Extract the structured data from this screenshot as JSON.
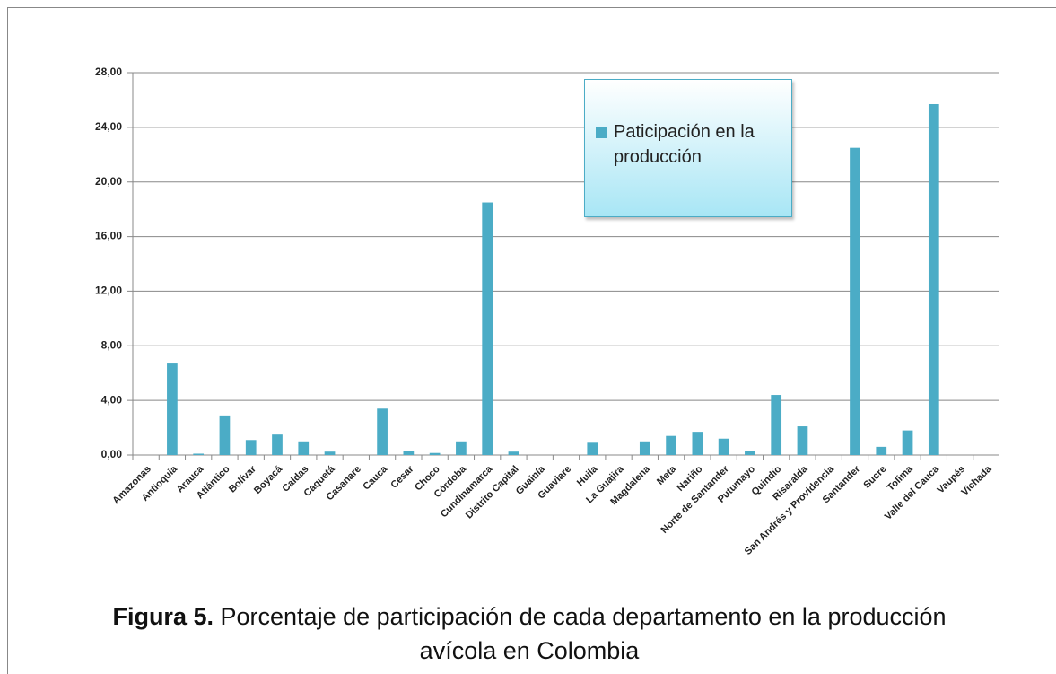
{
  "chart_data": {
    "type": "bar",
    "categories": [
      "Amazonas",
      "Antioquia",
      "Arauca",
      "Atlántico",
      "Bolívar",
      "Boyacá",
      "Caldas",
      "Caquetá",
      "Casanare",
      "Cauca",
      "Cesar",
      "Choco",
      "Córdoba",
      "Cundinamarca",
      "Distrito Capital",
      "Guainía",
      "Guaviare",
      "Huila",
      "La Guajira",
      "Magdalena",
      "Meta",
      "Nariño",
      "Norte de Santander",
      "Putumayo",
      "Quindío",
      "Risaralda",
      "San Andrés y Providencia",
      "Santander",
      "Sucre",
      "Tolima",
      "Valle del Cauca",
      "Vaupés",
      "Vichada"
    ],
    "series": [
      {
        "name": "Paticipación  en la producción",
        "color": "#4bacc6",
        "values": [
          0,
          6.7,
          0.1,
          2.9,
          1.1,
          1.5,
          1.0,
          0.25,
          0,
          3.4,
          0.3,
          0.15,
          1.0,
          18.5,
          0.25,
          0,
          0,
          0.9,
          0,
          1.0,
          1.4,
          1.7,
          1.2,
          0.3,
          4.4,
          2.1,
          0,
          22.5,
          0.6,
          1.8,
          25.7,
          0,
          0
        ]
      }
    ],
    "ylim": [
      0,
      28
    ],
    "yticks": [
      {
        "value": 0,
        "label": "0,00"
      },
      {
        "value": 4,
        "label": "4,00"
      },
      {
        "value": 8,
        "label": "8,00"
      },
      {
        "value": 12,
        "label": "12,00"
      },
      {
        "value": 16,
        "label": "16,00"
      },
      {
        "value": 20,
        "label": "20,00"
      },
      {
        "value": 24,
        "label": "24,00"
      },
      {
        "value": 28,
        "label": "28,00"
      }
    ],
    "grid": true,
    "legend": "top-right",
    "caption_label": "Figura 5.",
    "caption_text": "Porcentaje de participación de cada departamento en la producción avícola en Colombia"
  }
}
